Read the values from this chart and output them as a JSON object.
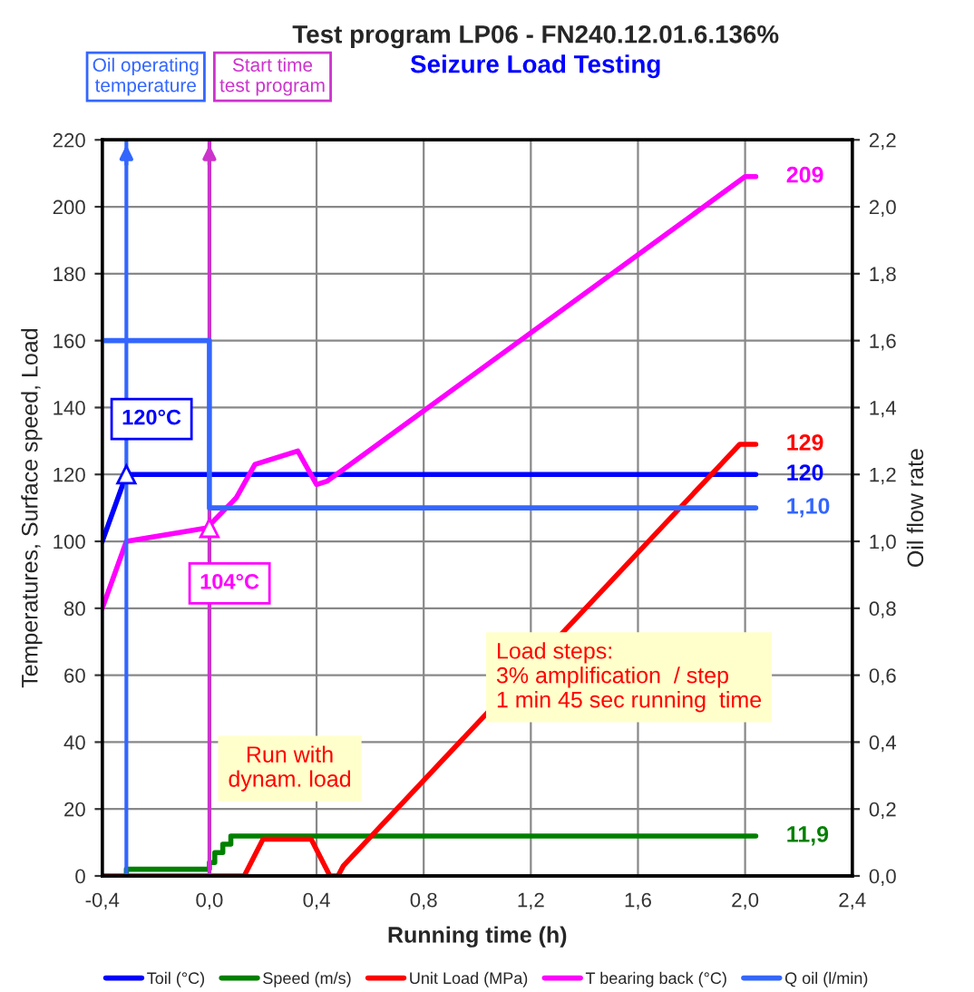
{
  "chart_data": {
    "type": "line",
    "title": "Test program LP06 - FN240.12.01.6.136%",
    "subtitle": "Seizure Load Testing",
    "xlabel": "Running time (h)",
    "ylabel": "Temperatures, Surface speed, Load",
    "y2label": "Oil flow rate",
    "xlim": [
      -0.4,
      2.4
    ],
    "xticks": [
      {
        "value": -0.4,
        "label": "-0,4"
      },
      {
        "value": 0.0,
        "label": "0,0"
      },
      {
        "value": 0.4,
        "label": "0,4"
      },
      {
        "value": 0.8,
        "label": "0,8"
      },
      {
        "value": 1.2,
        "label": "1,2"
      },
      {
        "value": 1.6,
        "label": "1,6"
      },
      {
        "value": 2.0,
        "label": "2,0"
      },
      {
        "value": 2.4,
        "label": "2,4"
      }
    ],
    "ylim": [
      0,
      220
    ],
    "yticks": [
      0,
      20,
      40,
      60,
      80,
      100,
      120,
      140,
      160,
      180,
      200,
      220
    ],
    "y2lim": [
      0,
      2.2
    ],
    "y2ticks": [
      {
        "value": 0.0,
        "label": "0,0"
      },
      {
        "value": 0.2,
        "label": "0,2"
      },
      {
        "value": 0.4,
        "label": "0,4"
      },
      {
        "value": 0.6,
        "label": "0,6"
      },
      {
        "value": 0.8,
        "label": "0,8"
      },
      {
        "value": 1.0,
        "label": "1,0"
      },
      {
        "value": 1.2,
        "label": "1,2"
      },
      {
        "value": 1.4,
        "label": "1,4"
      },
      {
        "value": 1.6,
        "label": "1,6"
      },
      {
        "value": 1.8,
        "label": "1,8"
      },
      {
        "value": 2.0,
        "label": "2,0"
      },
      {
        "value": 2.2,
        "label": "2,2"
      }
    ],
    "grid": true,
    "legend": "bottom",
    "line_style": "solid",
    "series": [
      {
        "name": "Toil (°C)",
        "color": "#0000ff",
        "x": [
          -0.4,
          -0.31,
          2.04
        ],
        "values": [
          100,
          120,
          120
        ],
        "value_labels": [
          null,
          null,
          "120"
        ]
      },
      {
        "name": "Speed (m/s)",
        "color": "#008000",
        "x": [
          -0.31,
          -0.31,
          0.0,
          0.0,
          0.02,
          0.02,
          0.05,
          0.05,
          0.08,
          0.08,
          2.04
        ],
        "values": [
          0,
          2,
          2,
          4,
          4,
          7,
          7,
          9.5,
          9.5,
          11.9,
          11.9
        ],
        "value_labels": [
          null,
          null,
          null,
          null,
          null,
          null,
          null,
          null,
          null,
          null,
          "11,9"
        ]
      },
      {
        "name": "Unit Load (MPa)",
        "color": "#ff0000",
        "x": [
          -0.4,
          0.13,
          0.2,
          0.38,
          0.45,
          0.48,
          0.5,
          1.98,
          2.04
        ],
        "values": [
          0,
          0,
          11,
          11,
          0,
          0,
          3,
          129,
          129
        ],
        "value_labels": [
          null,
          null,
          null,
          null,
          null,
          null,
          null,
          null,
          "129"
        ]
      },
      {
        "name": "T bearing back (°C)",
        "color": "#ff00ff",
        "x": [
          -0.4,
          -0.31,
          -0.01,
          0.1,
          0.17,
          0.33,
          0.4,
          0.44,
          2.0,
          2.04
        ],
        "values": [
          80,
          100,
          104,
          113,
          123,
          127,
          117,
          118,
          209,
          209
        ],
        "value_labels": [
          null,
          null,
          null,
          null,
          null,
          null,
          null,
          null,
          null,
          "209"
        ]
      },
      {
        "name": "Q oil (l/min)",
        "color": "#3366ff",
        "axis": "y2",
        "x": [
          -0.4,
          0.0,
          0.0,
          2.04
        ],
        "values": [
          1.6,
          1.6,
          1.1,
          1.1
        ],
        "value_labels": [
          null,
          null,
          null,
          "1,10"
        ]
      }
    ],
    "ref_lines": [
      {
        "axis": "x",
        "value": -0.31,
        "label": "Oil operating temperature",
        "color": "#3366ff"
      },
      {
        "axis": "x",
        "value": 0.0,
        "label": "Start time test program",
        "color": "#cc33cc"
      }
    ],
    "annotations": [
      {
        "text": "120°C",
        "x": -0.31,
        "y": 120
      },
      {
        "text": "104°C",
        "x": 0.0,
        "y": 104
      },
      {
        "text": "Run with\ndynam. load",
        "x": 0.3,
        "y": 11
      },
      "Load steps:\n3% amplification  / step\n1 min 45 sec running  time"
    ]
  }
}
